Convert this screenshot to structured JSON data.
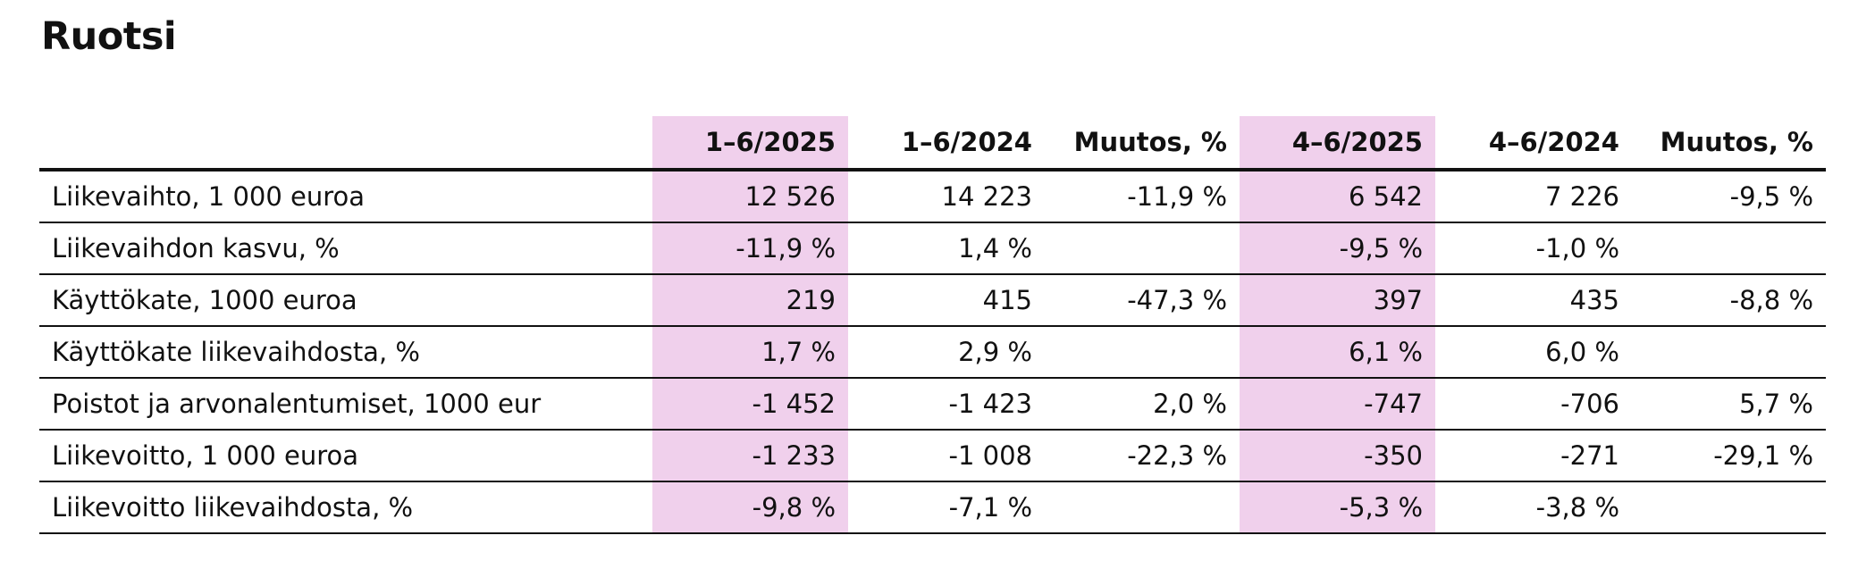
{
  "title": "Ruotsi",
  "highlight_color": "#f0d0ec",
  "table": {
    "headers": [
      "",
      "1–6/2025",
      "1–6/2024",
      "Muutos, %",
      "4–6/2025",
      "4–6/2024",
      "Muutos, %"
    ],
    "rows": [
      [
        "Liikevaihto, 1 000 euroa",
        "12 526",
        "14 223",
        "-11,9 %",
        "6 542",
        "7 226",
        "-9,5 %"
      ],
      [
        "Liikevaihdon kasvu, %",
        "-11,9 %",
        "1,4 %",
        "",
        "-9,5 %",
        "-1,0 %",
        ""
      ],
      [
        "Käyttökate, 1000 euroa",
        "219",
        "415",
        "-47,3 %",
        "397",
        "435",
        "-8,8 %"
      ],
      [
        "Käyttökate liikevaihdosta, %",
        "1,7 %",
        "2,9 %",
        "",
        "6,1 %",
        "6,0 %",
        ""
      ],
      [
        "Poistot ja arvonalentumiset, 1000 eur",
        "-1 452",
        "-1 423",
        "2,0 %",
        "-747",
        "-706",
        "5,7 %"
      ],
      [
        "Liikevoitto, 1 000 euroa",
        "-1 233",
        "-1 008",
        "-22,3 %",
        "-350",
        "-271",
        "-29,1 %"
      ],
      [
        "Liikevoitto liikevaihdosta, %",
        "-9,8 %",
        "-7,1 %",
        "",
        "-5,3 %",
        "-3,8 %",
        ""
      ]
    ]
  }
}
